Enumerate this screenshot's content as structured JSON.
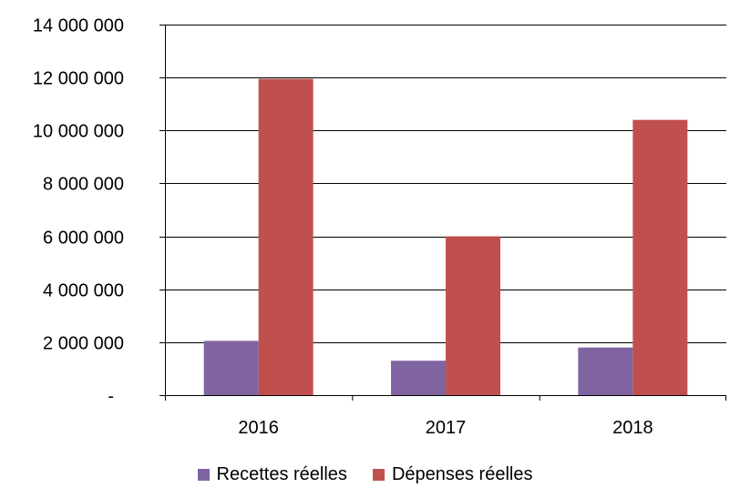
{
  "chart_data": {
    "type": "bar",
    "title": "",
    "xlabel": "",
    "ylabel": "",
    "categories": [
      "2016",
      "2017",
      "2018"
    ],
    "series": [
      {
        "name": "Recettes réelles",
        "color": "#8064A2",
        "values": [
          2050000,
          1300000,
          1800000
        ]
      },
      {
        "name": "Dépenses  réelles",
        "color": "#C0504D",
        "values": [
          11950000,
          6000000,
          10400000
        ]
      }
    ],
    "ylim": [
      0,
      14000000
    ],
    "yticks": [
      {
        "value": 0,
        "label": "-"
      },
      {
        "value": 2000000,
        "label": "2 000 000"
      },
      {
        "value": 4000000,
        "label": "4 000 000"
      },
      {
        "value": 6000000,
        "label": "6 000 000"
      },
      {
        "value": 8000000,
        "label": "8 000 000"
      },
      {
        "value": 10000000,
        "label": "10 000 000"
      },
      {
        "value": 12000000,
        "label": "12 000 000"
      },
      {
        "value": 14000000,
        "label": "14 000 000"
      }
    ],
    "grid": true,
    "grid_color": "#000000",
    "legend_position": "bottom"
  }
}
